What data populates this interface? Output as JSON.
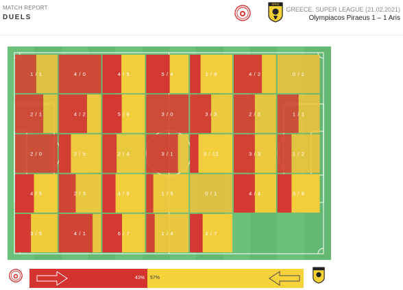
{
  "header": {
    "report_label": "MATCH REPORT",
    "report_title": "DUELS",
    "league_line": "GREECE. SUPER LEAGUE (21.02.2021)",
    "score_line": "Olympiacos Piraeus 1 – 1 Aris",
    "away_badge_text": "ΑΡΗΣ"
  },
  "colors": {
    "home": "#d53330",
    "away": "#f7d33b",
    "pitch": "#6cc07a",
    "pitch_line": "#ffffff"
  },
  "chart_data": {
    "type": "heatmap",
    "description_rows": "5 rows x 7 columns of pitch zones; each value = home duels won / away duels won",
    "rows": 5,
    "cols": 7,
    "cells": [
      [
        {
          "label": "1 / 1",
          "home": 1,
          "away": 1
        },
        {
          "label": "4 / 0",
          "home": 4,
          "away": 0
        },
        {
          "label": "4 / 5",
          "home": 4,
          "away": 5
        },
        {
          "label": "5 / 4",
          "home": 5,
          "away": 4
        },
        {
          "label": "3 / 9",
          "home": 3,
          "away": 9
        },
        {
          "label": "4 / 2",
          "home": 4,
          "away": 2
        },
        {
          "label": "0 / 1",
          "home": 0,
          "away": 1
        }
      ],
      [
        {
          "label": "2 / 1",
          "home": 2,
          "away": 1
        },
        {
          "label": "4 / 2",
          "home": 4,
          "away": 2
        },
        {
          "label": "5 / 6",
          "home": 5,
          "away": 6
        },
        {
          "label": "3 / 0",
          "home": 3,
          "away": 0
        },
        {
          "label": "3 / 3",
          "home": 3,
          "away": 3
        },
        {
          "label": "2 / 2",
          "home": 2,
          "away": 2
        },
        {
          "label": "1 / 1",
          "home": 1,
          "away": 1
        }
      ],
      [
        {
          "label": "2 / 0",
          "home": 2,
          "away": 0
        },
        {
          "label": "2 / 5",
          "home": 2,
          "away": 5
        },
        {
          "label": "2 / 4",
          "home": 2,
          "away": 4
        },
        {
          "label": "3 / 1",
          "home": 3,
          "away": 1
        },
        {
          "label": "3 / 12",
          "home": 3,
          "away": 12
        },
        {
          "label": "3 / 3",
          "home": 3,
          "away": 3
        },
        {
          "label": "1 / 2",
          "home": 1,
          "away": 2
        }
      ],
      [
        {
          "label": "4 / 5",
          "home": 4,
          "away": 5
        },
        {
          "label": "2 / 3",
          "home": 2,
          "away": 3
        },
        {
          "label": "4 / 9",
          "home": 4,
          "away": 9
        },
        {
          "label": "1 / 5",
          "home": 1,
          "away": 5
        },
        {
          "label": "0 / 1",
          "home": 0,
          "away": 1
        },
        {
          "label": "4 / 4",
          "home": 4,
          "away": 4
        },
        {
          "label": "3 / 6",
          "home": 3,
          "away": 6
        }
      ],
      [
        {
          "label": "3 / 5",
          "home": 3,
          "away": 5
        },
        {
          "label": "4 / 1",
          "home": 4,
          "away": 1
        },
        {
          "label": "6 / 7",
          "home": 6,
          "away": 7
        },
        {
          "label": "1 / 4",
          "home": 1,
          "away": 4
        },
        {
          "label": "3 / 7",
          "home": 3,
          "away": 7
        },
        null,
        null
      ]
    ]
  },
  "possession_bar": {
    "home_pct": 43,
    "away_pct": 57,
    "home_label": "43%",
    "away_label": "57%"
  }
}
